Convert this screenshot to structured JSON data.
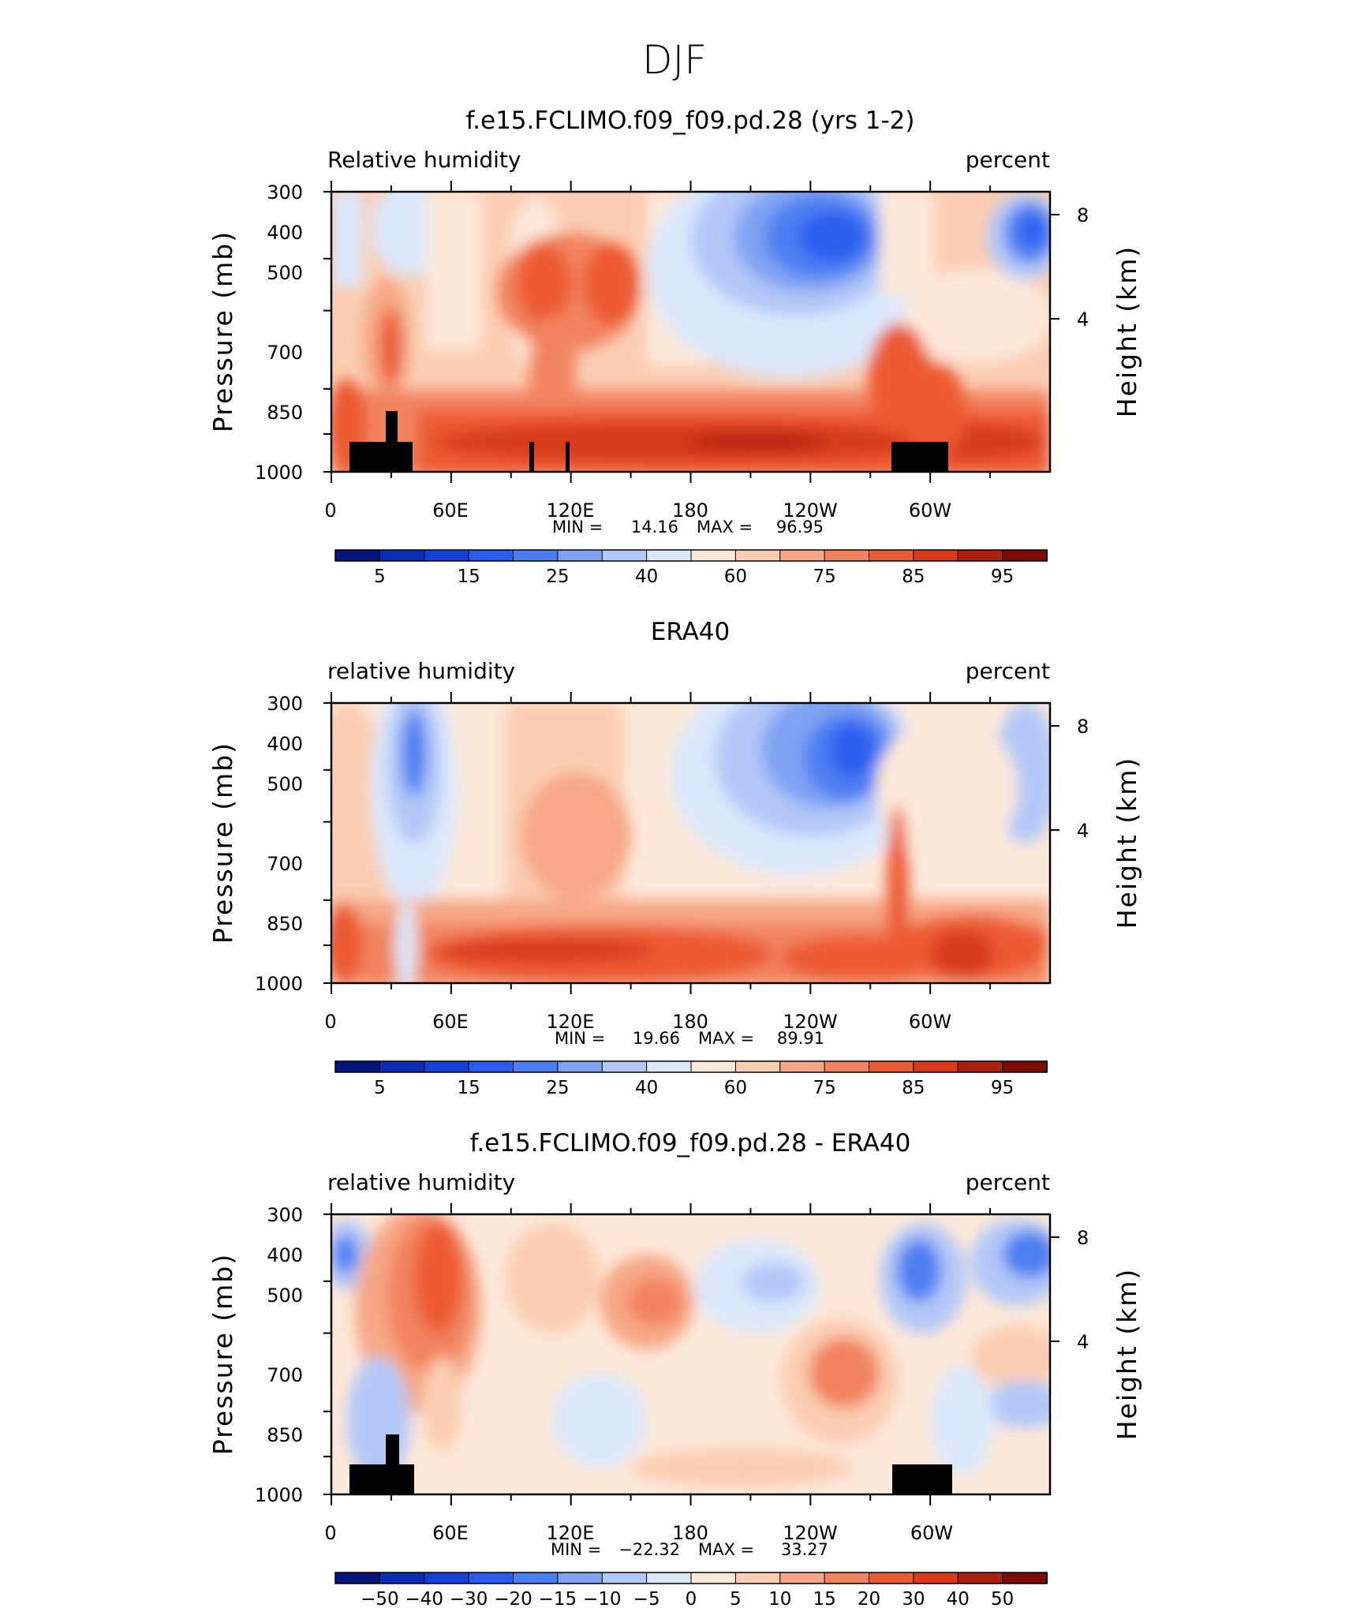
{
  "page_title": "DJF",
  "chart_data": [
    {
      "type": "heatmap",
      "title": "f.e15.FCLIMO.f09_f09.pd.28 (yrs 1-2)",
      "left_label": "Relative humidity",
      "right_label": "percent",
      "ylabel": "Pressure (mb)",
      "ylabel_right": "Height (km)",
      "y_ticks": [
        "300",
        "400",
        "500",
        "700",
        "850",
        "1000"
      ],
      "y_right_ticks": [
        "8",
        "4"
      ],
      "x_ticks": [
        "0",
        "60E",
        "120E",
        "180",
        "120W",
        "60W"
      ],
      "min_label": "MIN =",
      "min_value": "14.16",
      "max_label": "MAX =",
      "max_value": "96.95",
      "colorbar_labels": [
        "5",
        "15",
        "25",
        "40",
        "60",
        "75",
        "85",
        "95"
      ],
      "colorbar_colors": [
        "#05137d",
        "#0a2cb8",
        "#1240d8",
        "#2b5ef0",
        "#4d7ef2",
        "#7fa2f3",
        "#b3c8f8",
        "#dce8fb",
        "#fde9da",
        "#fbcdb2",
        "#f6a785",
        "#f2835e",
        "#ec5a33",
        "#d83a1a",
        "#b0200e",
        "#7c0a06"
      ],
      "terrain": true
    },
    {
      "type": "heatmap",
      "title": "ERA40",
      "left_label": "relative humidity",
      "right_label": "percent",
      "ylabel": "Pressure (mb)",
      "ylabel_right": "Height (km)",
      "y_ticks": [
        "300",
        "400",
        "500",
        "700",
        "850",
        "1000"
      ],
      "y_right_ticks": [
        "8",
        "4"
      ],
      "x_ticks": [
        "0",
        "60E",
        "120E",
        "180",
        "120W",
        "60W"
      ],
      "min_label": "MIN =",
      "min_value": "19.66",
      "max_label": "MAX =",
      "max_value": "89.91",
      "colorbar_labels": [
        "5",
        "15",
        "25",
        "40",
        "60",
        "75",
        "85",
        "95"
      ],
      "colorbar_colors": [
        "#05137d",
        "#0a2cb8",
        "#1240d8",
        "#2b5ef0",
        "#4d7ef2",
        "#7fa2f3",
        "#b3c8f8",
        "#dce8fb",
        "#fde9da",
        "#fbcdb2",
        "#f6a785",
        "#f2835e",
        "#ec5a33",
        "#d83a1a",
        "#b0200e",
        "#7c0a06"
      ],
      "terrain": false
    },
    {
      "type": "heatmap",
      "title": "f.e15.FCLIMO.f09_f09.pd.28 - ERA40",
      "left_label": "relative humidity",
      "right_label": "percent",
      "ylabel": "Pressure (mb)",
      "ylabel_right": "Height (km)",
      "y_ticks": [
        "300",
        "400",
        "500",
        "700",
        "850",
        "1000"
      ],
      "y_right_ticks": [
        "8",
        "4"
      ],
      "x_ticks": [
        "0",
        "60E",
        "120E",
        "180",
        "120W",
        "60W"
      ],
      "min_label": "MIN =",
      "min_value": "−22.32",
      "max_label": "MAX =",
      "max_value": "33.27",
      "colorbar_labels": [
        "−50",
        "−40",
        "−30",
        "−20",
        "−15",
        "−10",
        "−5",
        "0",
        "5",
        "10",
        "15",
        "20",
        "30",
        "40",
        "50"
      ],
      "colorbar_colors": [
        "#05137d",
        "#0a2cb8",
        "#1240d8",
        "#2b5ef0",
        "#4d7ef2",
        "#7fa2f3",
        "#b3c8f8",
        "#dce8fb",
        "#fde9da",
        "#fbcdb2",
        "#f6a785",
        "#f2835e",
        "#ec5a33",
        "#d83a1a",
        "#b0200e",
        "#7c0a06"
      ],
      "terrain": true
    }
  ]
}
